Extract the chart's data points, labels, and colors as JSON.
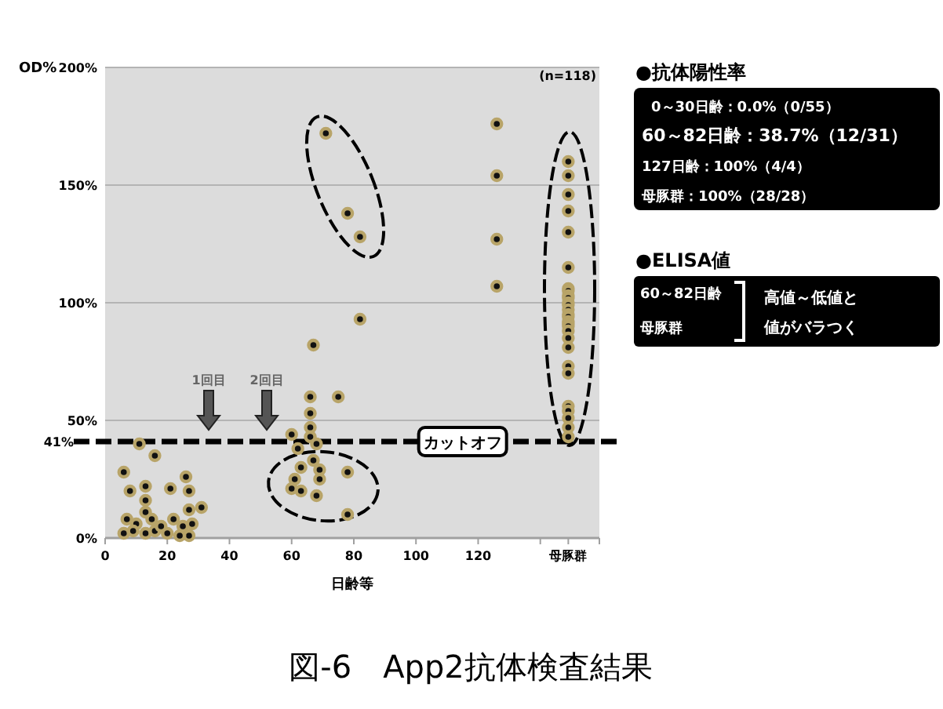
{
  "chart_data": [
    {
      "type": "scatter",
      "title": "図-6　App2抗体検査結果",
      "xlabel": "日齢等",
      "ylabel": "OD%",
      "xlim": [
        0,
        159
      ],
      "ylim": [
        0,
        200
      ],
      "xticks": [
        0,
        20,
        40,
        60,
        80,
        100,
        120,
        {
          "value": 140,
          "label": null
        },
        {
          "value": 149,
          "label": "母豚群"
        }
      ],
      "yticks": [
        {
          "value": 0,
          "label": "0%"
        },
        {
          "value": 50,
          "label": "50%"
        },
        {
          "value": 100,
          "label": "100%"
        },
        {
          "value": 150,
          "label": "150%"
        },
        {
          "value": 200,
          "label": "200%"
        }
      ],
      "grid": "y",
      "marker": "circle",
      "ref_lines": [
        {
          "axis": "y",
          "value": 41,
          "label": "41%",
          "color": "#000000",
          "line_style": "dashed"
        }
      ],
      "annotations": [
        "(n=118)",
        {
          "text": "カットオフ",
          "x": 115,
          "y": 41
        },
        "1回目",
        "2回目"
      ],
      "series": [
        {
          "color": "#b8a468",
          "x": [
            6,
            11,
            16,
            8,
            13,
            13,
            13,
            7,
            10,
            13,
            16,
            15,
            6,
            21,
            27,
            26,
            22,
            25,
            31,
            27,
            20,
            27,
            28,
            24,
            9,
            18,
            60,
            60,
            61,
            62,
            63,
            63,
            66,
            66,
            66,
            66,
            67,
            68,
            68,
            69,
            69,
            67,
            75,
            78,
            78,
            71,
            78,
            82,
            82,
            126,
            126,
            126,
            126,
            149,
            149,
            149,
            149,
            149,
            149,
            149,
            149,
            149,
            149,
            149,
            149,
            149,
            149,
            149,
            149,
            149,
            149,
            149,
            149,
            149,
            149,
            149,
            149,
            149,
            149,
            149,
            149
          ],
          "values": [
            28,
            40,
            35,
            20,
            22,
            16,
            11,
            8,
            6,
            2,
            3,
            8,
            2,
            21,
            20,
            26,
            8,
            5,
            13,
            12,
            2,
            1,
            6,
            1,
            3,
            5,
            44,
            21,
            25,
            38,
            30,
            20,
            60,
            53,
            47,
            43,
            33,
            40,
            18,
            29,
            25,
            82,
            60,
            28,
            10,
            172,
            138,
            128,
            93,
            176,
            154,
            127,
            107,
            160,
            154,
            146,
            139,
            130,
            115,
            106,
            105,
            103,
            102,
            100,
            99,
            97,
            95,
            94,
            92,
            91,
            90,
            88,
            85,
            81,
            73,
            70,
            56,
            54,
            51,
            47,
            43
          ]
        }
      ]
    },
    {
      "type": "other",
      "title": "●抗体陽性率",
      "annotations": [
        "0～30日齢：0.0%（0/55）",
        "60～82日齢：38.7%（12/31）",
        "127日齢：100%（4/4）",
        "母豚群：100%（28/28）"
      ]
    },
    {
      "type": "other",
      "title": "●ELISA値",
      "annotations": [
        "60～82日齢",
        "母豚群",
        "高値～低値と",
        "値がバラつく"
      ]
    }
  ]
}
